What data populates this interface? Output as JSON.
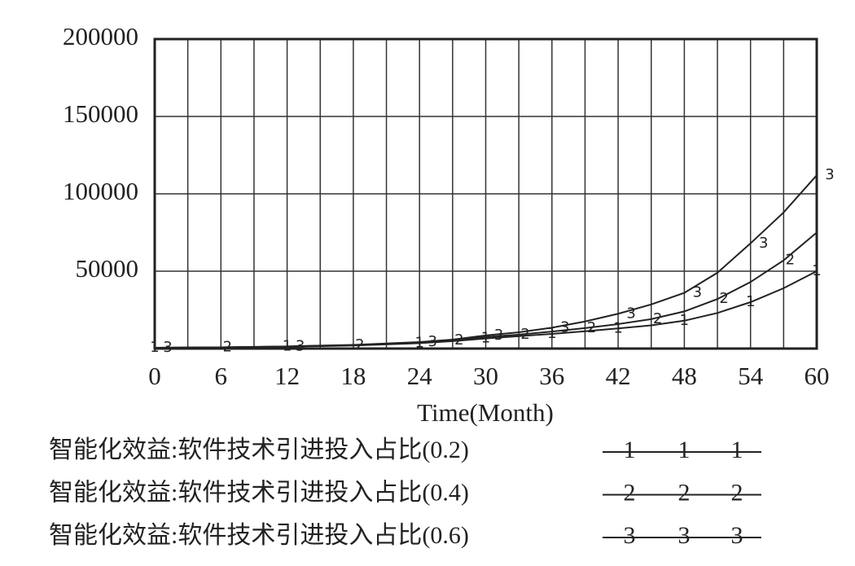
{
  "chart_data": {
    "type": "line",
    "x_label": "Time(Month)",
    "x": [
      0,
      6,
      12,
      18,
      24,
      27,
      30,
      33,
      36,
      39,
      42,
      45,
      48,
      51,
      54,
      57,
      60
    ],
    "series": [
      {
        "name": "智能化效益:软件技术引进投入占比(0.2)",
        "marker": "1",
        "color": "#222222",
        "values": [
          500,
          800,
          1200,
          2000,
          3500,
          4800,
          6500,
          8000,
          9500,
          11200,
          13000,
          15000,
          18000,
          23000,
          30000,
          39000,
          50000
        ]
      },
      {
        "name": "智能化效益:软件技术引进投入占比(0.4)",
        "marker": "2",
        "color": "#222222",
        "values": [
          500,
          800,
          1300,
          2200,
          3800,
          5200,
          7500,
          9000,
          11000,
          13200,
          15800,
          19000,
          24000,
          32000,
          43000,
          57000,
          75000
        ]
      },
      {
        "name": "智能化效益:软件技术引进投入占比(0.6)",
        "marker": "3",
        "color": "#222222",
        "values": [
          500,
          800,
          1400,
          2400,
          4200,
          5800,
          8500,
          10500,
          13500,
          17500,
          22500,
          28500,
          36000,
          49000,
          68000,
          88000,
          112000
        ]
      }
    ],
    "xlim": [
      0,
      60
    ],
    "xticks": [
      0,
      6,
      12,
      18,
      24,
      30,
      36,
      42,
      48,
      54,
      60
    ],
    "xminorticks": [
      3,
      9,
      15,
      21,
      27,
      33,
      39,
      45,
      51,
      57
    ],
    "ylim": [
      0,
      200000
    ],
    "yticks": [
      50000,
      100000,
      150000,
      200000
    ],
    "grid": true
  }
}
